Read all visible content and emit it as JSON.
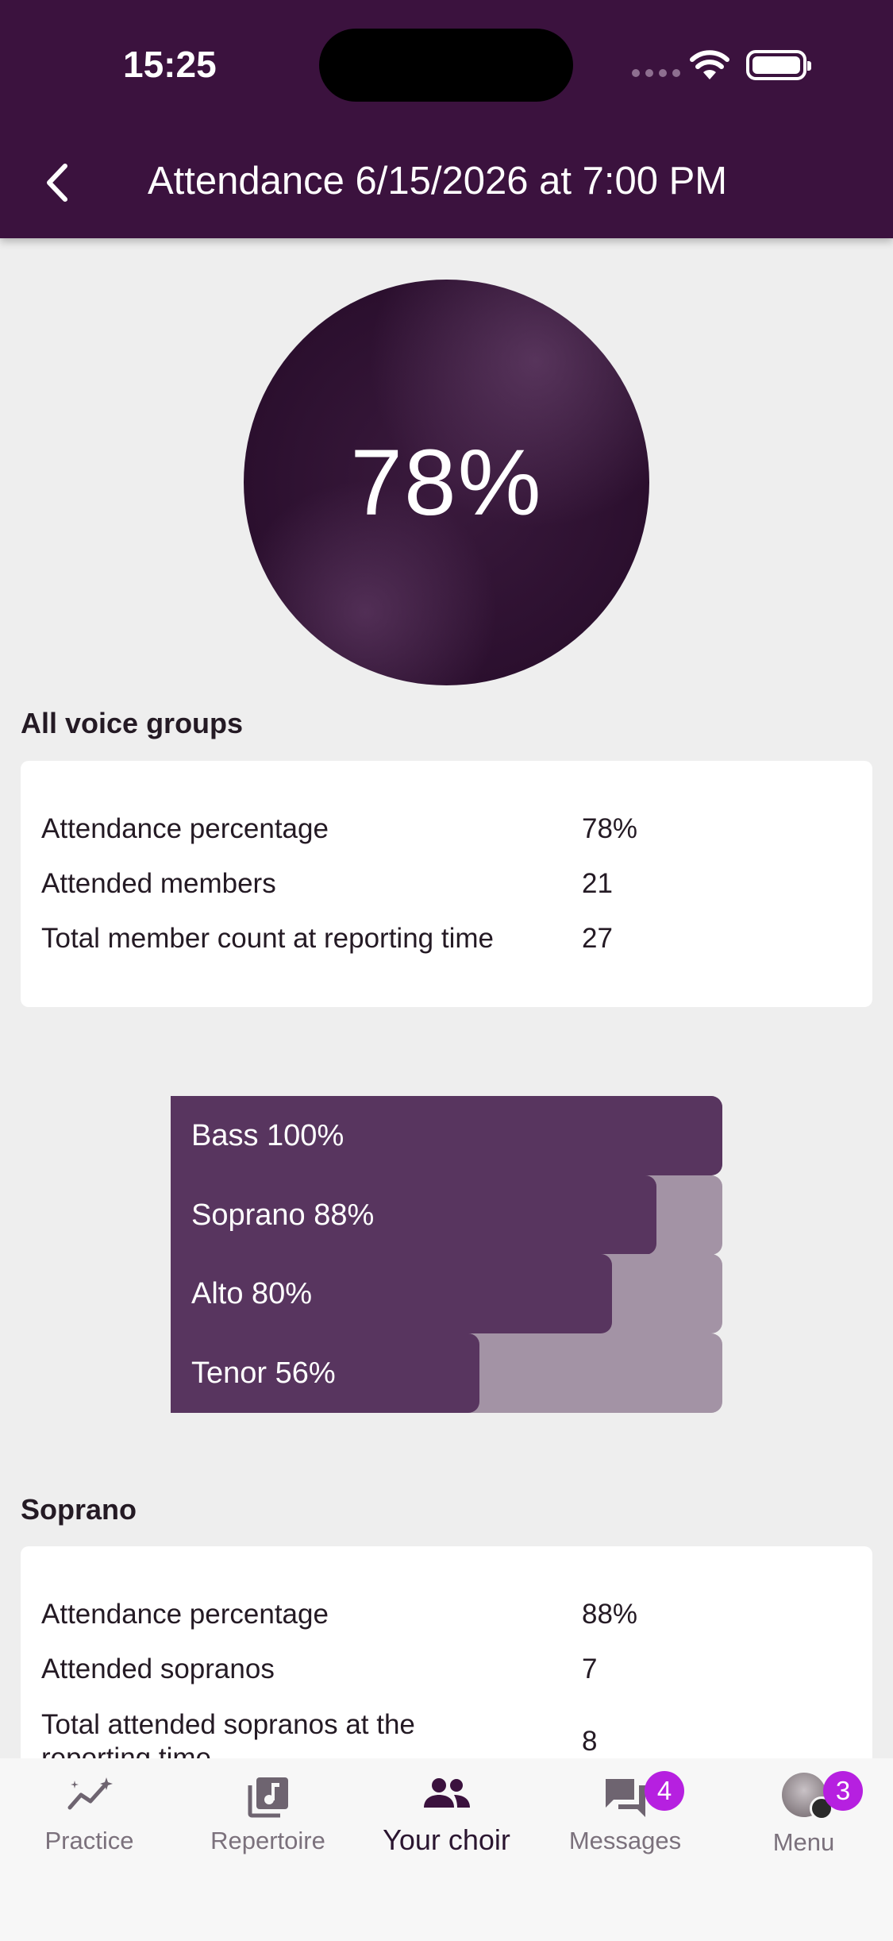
{
  "status_bar": {
    "time": "15:25"
  },
  "header": {
    "title": "Attendance 6/15/2026 at 7:00 PM"
  },
  "summary": {
    "percent_label": "78%"
  },
  "all_groups": {
    "title": "All voice groups",
    "rows": [
      {
        "label": "Attendance percentage",
        "value": "78%"
      },
      {
        "label": "Attended members",
        "value": "21"
      },
      {
        "label": "Total member count at reporting time",
        "value": "27"
      }
    ]
  },
  "chart_data": {
    "type": "bar",
    "orientation": "horizontal",
    "categories": [
      "Bass",
      "Soprano",
      "Alto",
      "Tenor"
    ],
    "values": [
      100,
      88,
      80,
      56
    ],
    "labels": [
      "Bass 100%",
      "Soprano 88%",
      "Alto 80%",
      "Tenor 56%"
    ],
    "xlim": [
      0,
      100
    ],
    "bar_color": "#58355f",
    "track_color": "#a393a5"
  },
  "soprano": {
    "title": "Soprano",
    "rows": [
      {
        "label": "Attendance percentage",
        "value": "88%"
      },
      {
        "label": "Attended sopranos",
        "value": "7"
      },
      {
        "label": "Total attended sopranos at the reporting time",
        "value": "8"
      }
    ]
  },
  "bottom_nav": {
    "items": [
      {
        "label": "Practice",
        "icon": "practice-icon"
      },
      {
        "label": "Repertoire",
        "icon": "repertoire-icon"
      },
      {
        "label": "Your choir",
        "icon": "group-icon",
        "active": true
      },
      {
        "label": "Messages",
        "icon": "messages-icon",
        "badge": "4"
      },
      {
        "label": "Menu",
        "icon": "avatar",
        "badge": "3"
      }
    ]
  },
  "colors": {
    "header_bg": "#3b123e",
    "badge": "#b620e0",
    "page_bg": "#eeeeee"
  }
}
